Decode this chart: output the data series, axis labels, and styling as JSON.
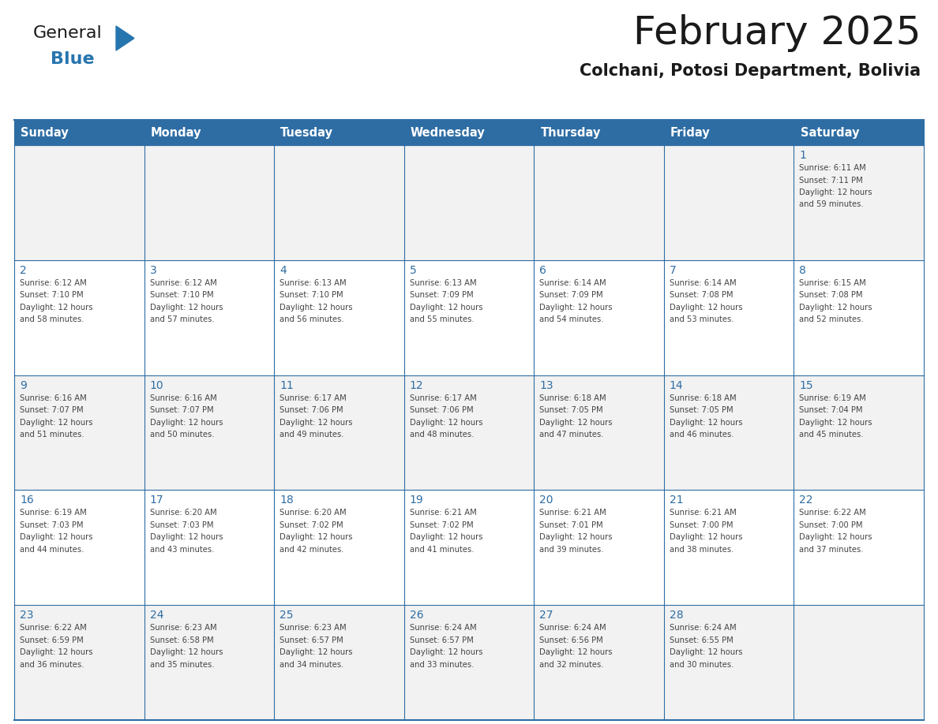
{
  "title": "February 2025",
  "subtitle": "Colchani, Potosi Department, Bolivia",
  "days_of_week": [
    "Sunday",
    "Monday",
    "Tuesday",
    "Wednesday",
    "Thursday",
    "Friday",
    "Saturday"
  ],
  "header_bg_color": "#2E6DA4",
  "header_text_color": "#FFFFFF",
  "row_bg_colors": [
    "#F2F2F2",
    "#FFFFFF"
  ],
  "day_number_color": "#2E6DA4",
  "cell_text_color": "#444444",
  "border_color": "#2E6DA4",
  "logo_color1": "#1a1a1a",
  "logo_color2": "#2775AE",
  "calendar_data": [
    [
      {
        "day": null,
        "info": ""
      },
      {
        "day": null,
        "info": ""
      },
      {
        "day": null,
        "info": ""
      },
      {
        "day": null,
        "info": ""
      },
      {
        "day": null,
        "info": ""
      },
      {
        "day": null,
        "info": ""
      },
      {
        "day": 1,
        "info": "Sunrise: 6:11 AM\nSunset: 7:11 PM\nDaylight: 12 hours\nand 59 minutes."
      }
    ],
    [
      {
        "day": 2,
        "info": "Sunrise: 6:12 AM\nSunset: 7:10 PM\nDaylight: 12 hours\nand 58 minutes."
      },
      {
        "day": 3,
        "info": "Sunrise: 6:12 AM\nSunset: 7:10 PM\nDaylight: 12 hours\nand 57 minutes."
      },
      {
        "day": 4,
        "info": "Sunrise: 6:13 AM\nSunset: 7:10 PM\nDaylight: 12 hours\nand 56 minutes."
      },
      {
        "day": 5,
        "info": "Sunrise: 6:13 AM\nSunset: 7:09 PM\nDaylight: 12 hours\nand 55 minutes."
      },
      {
        "day": 6,
        "info": "Sunrise: 6:14 AM\nSunset: 7:09 PM\nDaylight: 12 hours\nand 54 minutes."
      },
      {
        "day": 7,
        "info": "Sunrise: 6:14 AM\nSunset: 7:08 PM\nDaylight: 12 hours\nand 53 minutes."
      },
      {
        "day": 8,
        "info": "Sunrise: 6:15 AM\nSunset: 7:08 PM\nDaylight: 12 hours\nand 52 minutes."
      }
    ],
    [
      {
        "day": 9,
        "info": "Sunrise: 6:16 AM\nSunset: 7:07 PM\nDaylight: 12 hours\nand 51 minutes."
      },
      {
        "day": 10,
        "info": "Sunrise: 6:16 AM\nSunset: 7:07 PM\nDaylight: 12 hours\nand 50 minutes."
      },
      {
        "day": 11,
        "info": "Sunrise: 6:17 AM\nSunset: 7:06 PM\nDaylight: 12 hours\nand 49 minutes."
      },
      {
        "day": 12,
        "info": "Sunrise: 6:17 AM\nSunset: 7:06 PM\nDaylight: 12 hours\nand 48 minutes."
      },
      {
        "day": 13,
        "info": "Sunrise: 6:18 AM\nSunset: 7:05 PM\nDaylight: 12 hours\nand 47 minutes."
      },
      {
        "day": 14,
        "info": "Sunrise: 6:18 AM\nSunset: 7:05 PM\nDaylight: 12 hours\nand 46 minutes."
      },
      {
        "day": 15,
        "info": "Sunrise: 6:19 AM\nSunset: 7:04 PM\nDaylight: 12 hours\nand 45 minutes."
      }
    ],
    [
      {
        "day": 16,
        "info": "Sunrise: 6:19 AM\nSunset: 7:03 PM\nDaylight: 12 hours\nand 44 minutes."
      },
      {
        "day": 17,
        "info": "Sunrise: 6:20 AM\nSunset: 7:03 PM\nDaylight: 12 hours\nand 43 minutes."
      },
      {
        "day": 18,
        "info": "Sunrise: 6:20 AM\nSunset: 7:02 PM\nDaylight: 12 hours\nand 42 minutes."
      },
      {
        "day": 19,
        "info": "Sunrise: 6:21 AM\nSunset: 7:02 PM\nDaylight: 12 hours\nand 41 minutes."
      },
      {
        "day": 20,
        "info": "Sunrise: 6:21 AM\nSunset: 7:01 PM\nDaylight: 12 hours\nand 39 minutes."
      },
      {
        "day": 21,
        "info": "Sunrise: 6:21 AM\nSunset: 7:00 PM\nDaylight: 12 hours\nand 38 minutes."
      },
      {
        "day": 22,
        "info": "Sunrise: 6:22 AM\nSunset: 7:00 PM\nDaylight: 12 hours\nand 37 minutes."
      }
    ],
    [
      {
        "day": 23,
        "info": "Sunrise: 6:22 AM\nSunset: 6:59 PM\nDaylight: 12 hours\nand 36 minutes."
      },
      {
        "day": 24,
        "info": "Sunrise: 6:23 AM\nSunset: 6:58 PM\nDaylight: 12 hours\nand 35 minutes."
      },
      {
        "day": 25,
        "info": "Sunrise: 6:23 AM\nSunset: 6:57 PM\nDaylight: 12 hours\nand 34 minutes."
      },
      {
        "day": 26,
        "info": "Sunrise: 6:24 AM\nSunset: 6:57 PM\nDaylight: 12 hours\nand 33 minutes."
      },
      {
        "day": 27,
        "info": "Sunrise: 6:24 AM\nSunset: 6:56 PM\nDaylight: 12 hours\nand 32 minutes."
      },
      {
        "day": 28,
        "info": "Sunrise: 6:24 AM\nSunset: 6:55 PM\nDaylight: 12 hours\nand 30 minutes."
      },
      {
        "day": null,
        "info": ""
      }
    ]
  ]
}
